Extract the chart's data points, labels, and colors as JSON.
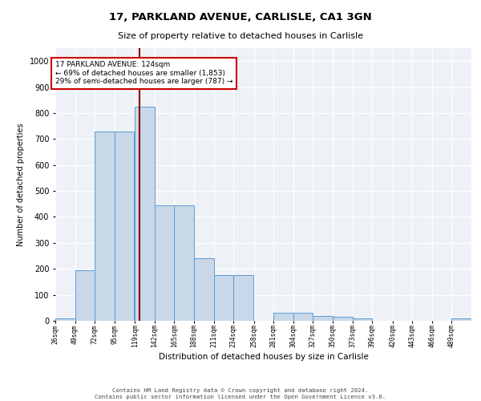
{
  "title1": "17, PARKLAND AVENUE, CARLISLE, CA1 3GN",
  "title2": "Size of property relative to detached houses in Carlisle",
  "xlabel": "Distribution of detached houses by size in Carlisle",
  "ylabel": "Number of detached properties",
  "categories": [
    "26sqm",
    "49sqm",
    "72sqm",
    "95sqm",
    "119sqm",
    "142sqm",
    "165sqm",
    "188sqm",
    "211sqm",
    "234sqm",
    "258sqm",
    "281sqm",
    "304sqm",
    "327sqm",
    "350sqm",
    "373sqm",
    "396sqm",
    "420sqm",
    "443sqm",
    "466sqm",
    "489sqm"
  ],
  "bin_edges": [
    26,
    49,
    72,
    95,
    119,
    142,
    165,
    188,
    211,
    234,
    258,
    281,
    304,
    327,
    350,
    373,
    396,
    420,
    443,
    466,
    489,
    512
  ],
  "values": [
    10,
    195,
    730,
    730,
    825,
    445,
    445,
    240,
    175,
    175,
    0,
    30,
    30,
    20,
    15,
    10,
    0,
    0,
    0,
    0,
    10
  ],
  "bar_color": "#c8d8e8",
  "bar_edge_color": "#5b9bd5",
  "vline_x": 124,
  "vline_color": "#8b0000",
  "annotation_text": "17 PARKLAND AVENUE: 124sqm\n← 69% of detached houses are smaller (1,853)\n29% of semi-detached houses are larger (787) →",
  "annotation_box_color": "white",
  "annotation_box_edge": "#cc0000",
  "ylim": [
    0,
    1050
  ],
  "yticks": [
    0,
    100,
    200,
    300,
    400,
    500,
    600,
    700,
    800,
    900,
    1000
  ],
  "background_color": "#eef2f7",
  "grid_color": "white",
  "footer1": "Contains HM Land Registry data © Crown copyright and database right 2024.",
  "footer2": "Contains public sector information licensed under the Open Government Licence v3.0."
}
